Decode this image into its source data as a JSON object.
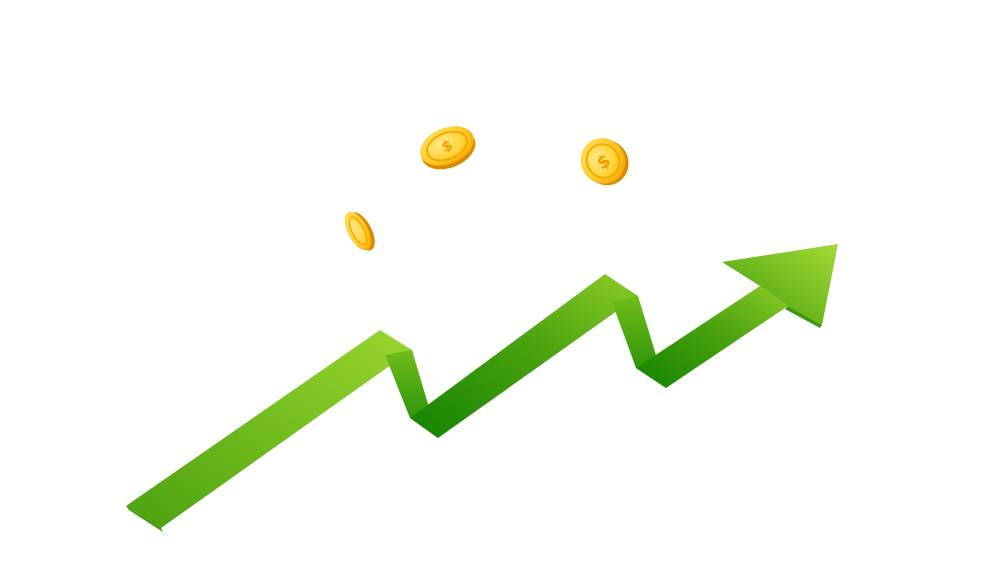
{
  "scene": {
    "background_color": "#ffffff",
    "arrow": {
      "icon": "growth-arrow-icon",
      "direction": "up-right",
      "colors": {
        "light": "#9ad52f",
        "mid": "#5fb114",
        "dark": "#138300",
        "darkest": "#0e7000"
      }
    },
    "coins": {
      "icon": "dollar-coin-icon",
      "symbol": "$",
      "count": 3,
      "colors": {
        "face": "#ffd43a",
        "rim": "#f5a800",
        "edge": "#d98a00",
        "highlight": "#ffe88a"
      }
    }
  }
}
